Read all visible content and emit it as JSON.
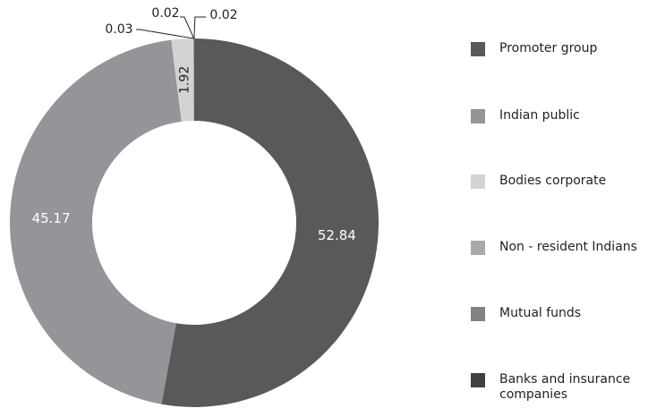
{
  "chart_data": {
    "type": "pie",
    "donut": true,
    "title": "",
    "slices": [
      {
        "label": "Promoter group",
        "value": 52.84,
        "value_label": "52.84",
        "color": "#58595b"
      },
      {
        "label": "Indian public",
        "value": 45.17,
        "value_label": "45.17",
        "color": "#939598"
      },
      {
        "label": "Bodies corporate",
        "value": 1.92,
        "value_label": "1.92",
        "color": "#d1d3d4"
      },
      {
        "label": "Non - resident Indians",
        "value": 0.03,
        "value_label": "0.03",
        "color": "#a7a9ac"
      },
      {
        "label": "Mutual funds",
        "value": 0.02,
        "value_label": "0.02",
        "color": "#808285"
      },
      {
        "label": "Banks and insurance companies",
        "value": 0.02,
        "value_label": "0.02",
        "color": "#414042"
      }
    ],
    "legend_position": "right"
  }
}
